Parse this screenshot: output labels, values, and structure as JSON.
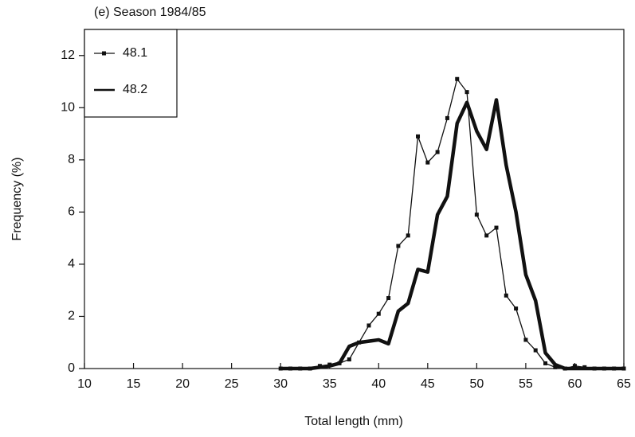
{
  "chart_data": {
    "type": "line",
    "title": "(e)  Season 1984/85",
    "x_label": "Total length (mm)",
    "y_label": "Frequency (%)",
    "x": [
      30,
      31,
      32,
      33,
      34,
      35,
      36,
      37,
      38,
      39,
      40,
      41,
      42,
      43,
      44,
      45,
      46,
      47,
      48,
      49,
      50,
      51,
      52,
      53,
      54,
      55,
      56,
      57,
      58,
      59,
      60,
      61,
      62,
      63,
      64,
      65
    ],
    "series": [
      {
        "name": "48.1",
        "color": "#111111",
        "marker": "square",
        "line_width": 1.3,
        "values": [
          0,
          0,
          0,
          0,
          0.1,
          0.15,
          0.2,
          0.35,
          1.0,
          1.65,
          2.1,
          2.7,
          4.7,
          5.1,
          8.9,
          7.9,
          8.3,
          9.6,
          11.1,
          10.6,
          5.9,
          5.1,
          5.4,
          2.8,
          2.3,
          1.1,
          0.7,
          0.2,
          0.05,
          0,
          0.1,
          0.05,
          0,
          0,
          0,
          0
        ]
      },
      {
        "name": "48.2",
        "color": "#111111",
        "marker": "none",
        "line_width": 4.5,
        "values": [
          0,
          0,
          0,
          0,
          0.05,
          0.1,
          0.2,
          0.85,
          1.0,
          1.05,
          1.1,
          0.95,
          2.2,
          2.5,
          3.8,
          3.7,
          5.9,
          6.6,
          9.4,
          10.2,
          9.1,
          8.4,
          10.3,
          7.8,
          6.0,
          3.6,
          2.6,
          0.6,
          0.15,
          0,
          0,
          0,
          0,
          0,
          0,
          0
        ]
      }
    ],
    "xlim": [
      10,
      65
    ],
    "xticks": [
      10,
      15,
      20,
      25,
      30,
      35,
      40,
      45,
      50,
      55,
      60,
      65
    ],
    "ylim": [
      0,
      13
    ],
    "yticks": [
      0,
      2,
      4,
      6,
      8,
      10,
      12
    ],
    "legend": "upper left"
  }
}
